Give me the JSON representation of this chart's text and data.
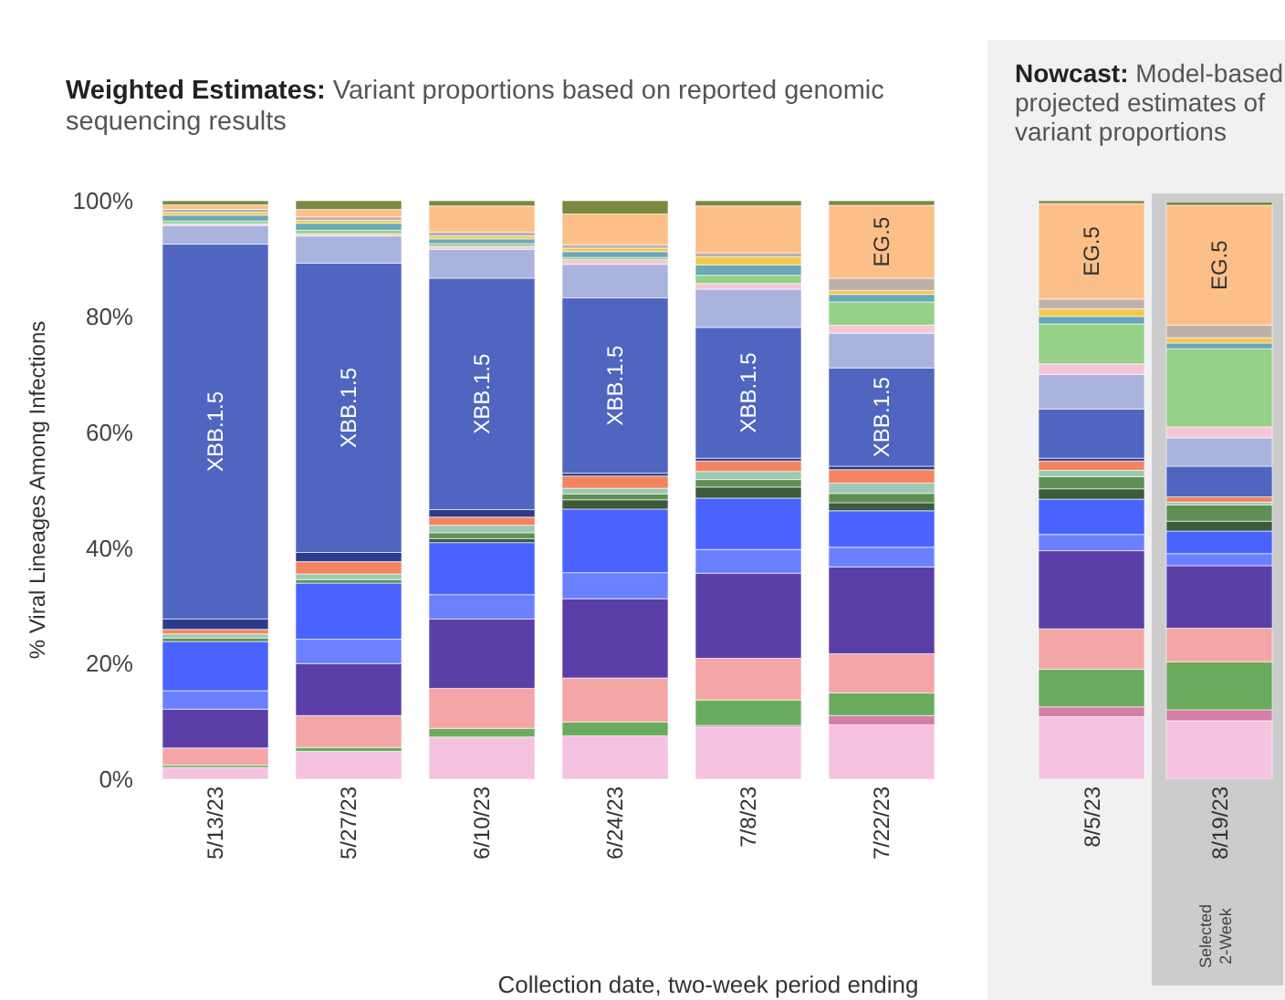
{
  "chart_data": {
    "type": "bar",
    "title": "Weighted Estimates: Variant proportions based on reported genomic sequencing results",
    "xlabel": "Collection date, two-week period ending",
    "ylabel": "% Viral Lineages Among Infections",
    "categories": [
      "5/13/23",
      "5/27/23",
      "6/10/23",
      "6/24/23",
      "7/8/23",
      "7/22/23",
      "8/5/23",
      "8/19/23"
    ],
    "stacked": true,
    "ylim": [
      0,
      100
    ],
    "yticks": [
      {
        "value": 0,
        "label": "0%"
      },
      {
        "value": 20,
        "label": "20%"
      },
      {
        "value": 40,
        "label": "40%"
      },
      {
        "value": 60,
        "label": "60%"
      },
      {
        "value": 80,
        "label": "80%"
      },
      {
        "value": 100,
        "label": "100%"
      }
    ],
    "annotations": [
      "Nowcast: Model-based projected estimates of variant proportions"
    ],
    "bands": [
      {
        "axis": "x",
        "from": "8/19/23",
        "to": "8/19/23",
        "label": "Selected 2-Week",
        "color": "#cccccc"
      }
    ],
    "series": [
      {
        "color": "#f5c2e2",
        "values": [
          2.0,
          4.8,
          7.3,
          7.5,
          9.0,
          9.4,
          10.8,
          10.1
        ]
      },
      {
        "color": "#d47fa6",
        "values": [
          0,
          0,
          0,
          0,
          0.3,
          1.6,
          1.7,
          1.9
        ]
      },
      {
        "color": "#6aab5e",
        "values": [
          0.4,
          0.7,
          1.5,
          2.4,
          4.4,
          3.9,
          6.5,
          8.3
        ]
      },
      {
        "color": "#f4a6a6",
        "values": [
          3.0,
          5.5,
          6.9,
          7.6,
          7.2,
          6.8,
          7.0,
          5.8
        ]
      },
      {
        "color": "#5b3fa8",
        "values": [
          6.7,
          9.0,
          12.0,
          13.7,
          14.7,
          15.0,
          13.5,
          10.8
        ]
      },
      {
        "color": "#6b80ff",
        "values": [
          3.2,
          4.2,
          4.2,
          4.5,
          4.1,
          3.4,
          2.8,
          2.1
        ]
      },
      {
        "color": "#4a63ff",
        "values": [
          8.5,
          9.7,
          9.0,
          11.0,
          8.9,
          6.3,
          6.1,
          3.9
        ]
      },
      {
        "color": "#3d5a3d",
        "values": [
          0,
          0,
          0.7,
          1.6,
          1.9,
          1.4,
          1.8,
          1.7
        ]
      },
      {
        "color": "#5f8f55",
        "values": [
          0.6,
          0.6,
          1.0,
          1.0,
          1.3,
          1.6,
          2.1,
          2.8
        ]
      },
      {
        "color": "#9ccab0",
        "values": [
          0.7,
          1.0,
          1.3,
          1.0,
          1.4,
          1.8,
          1.1,
          0.5
        ]
      },
      {
        "color": "#f4845f",
        "values": [
          0.8,
          2.1,
          1.4,
          2.1,
          1.8,
          2.3,
          1.6,
          0.9
        ]
      },
      {
        "color": "#2e3a8c",
        "values": [
          1.8,
          1.6,
          1.3,
          0.5,
          0.5,
          0.6,
          0.5,
          null
        ]
      },
      {
        "name": "XBB.1.5",
        "color": "#5065bf",
        "values": [
          64.8,
          50.0,
          40.0,
          30.3,
          22.6,
          17.0,
          8.5,
          5.3
        ]
      },
      {
        "color": "#a9b3dd",
        "values": [
          3.2,
          4.7,
          5.0,
          5.8,
          6.6,
          6.0,
          6.0,
          4.9
        ]
      },
      {
        "color": "#f7c6d6",
        "values": [
          0.3,
          0.4,
          0.5,
          0.8,
          1.0,
          1.4,
          1.8,
          1.9
        ]
      },
      {
        "color": "#95d188",
        "values": [
          0.5,
          0.6,
          0.5,
          0.4,
          1.4,
          4.0,
          6.9,
          13.5
        ]
      },
      {
        "color": "#6aa8b8",
        "values": [
          1.0,
          1.2,
          0.8,
          1.0,
          1.8,
          1.3,
          1.3,
          1.0
        ]
      },
      {
        "color": "#f2c94c",
        "values": [
          0.5,
          0.5,
          0.5,
          0.6,
          1.4,
          0.7,
          1.3,
          0.9
        ]
      },
      {
        "color": "#bfb0ab",
        "values": [
          0.5,
          0.6,
          0.7,
          0.6,
          0.7,
          2.1,
          1.7,
          2.2
        ]
      },
      {
        "name": "EG.5",
        "color": "#fdbf88",
        "values": [
          0.8,
          1.3,
          4.5,
          5.3,
          8.1,
          12.6,
          16.5,
          20.7
        ]
      },
      {
        "color": "#7a8a3f",
        "values": [
          0.7,
          1.5,
          0.9,
          2.3,
          0.9,
          0.8,
          0.5,
          0.6
        ]
      }
    ]
  }
}
